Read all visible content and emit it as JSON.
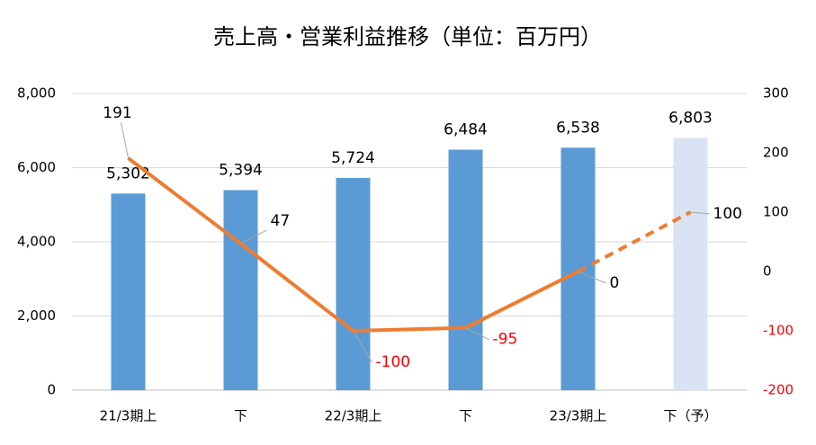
{
  "chart_data": {
    "type": "bar_line",
    "title": "売上高・営業利益推移（単位：百万円）",
    "categories": [
      "21/3期上",
      "下",
      "22/3期上",
      "下",
      "23/3期上",
      "下（予）"
    ],
    "series": [
      {
        "type": "bar",
        "color": "#5b9bd5",
        "colors": [
          "#5b9bd5",
          "#5b9bd5",
          "#5b9bd5",
          "#5b9bd5",
          "#5b9bd5",
          "#dae3f3"
        ],
        "values": [
          5302,
          5394,
          5724,
          6484,
          6538,
          6803
        ],
        "value_labels": [
          "5,302",
          "5,394",
          "5,724",
          "6,484",
          "6,538",
          "6,803"
        ]
      },
      {
        "type": "line",
        "axis": "y2",
        "color": "#ed7d31",
        "dashed_from": 4,
        "values": [
          191,
          47,
          -100,
          -95,
          0,
          100
        ]
      }
    ],
    "ylim": [
      0,
      8000
    ],
    "yticks": [
      0,
      {
        "value": 2000,
        "label": "2,000"
      },
      {
        "value": 4000,
        "label": "4,000"
      },
      {
        "value": 6000,
        "label": "6,000"
      },
      {
        "value": 8000,
        "label": "8,000"
      }
    ],
    "y2lim": [
      -200,
      300
    ],
    "y2ticks": [
      -200,
      -100,
      0,
      100,
      200,
      300
    ],
    "negative_color": "#ff0000",
    "grid": true
  }
}
